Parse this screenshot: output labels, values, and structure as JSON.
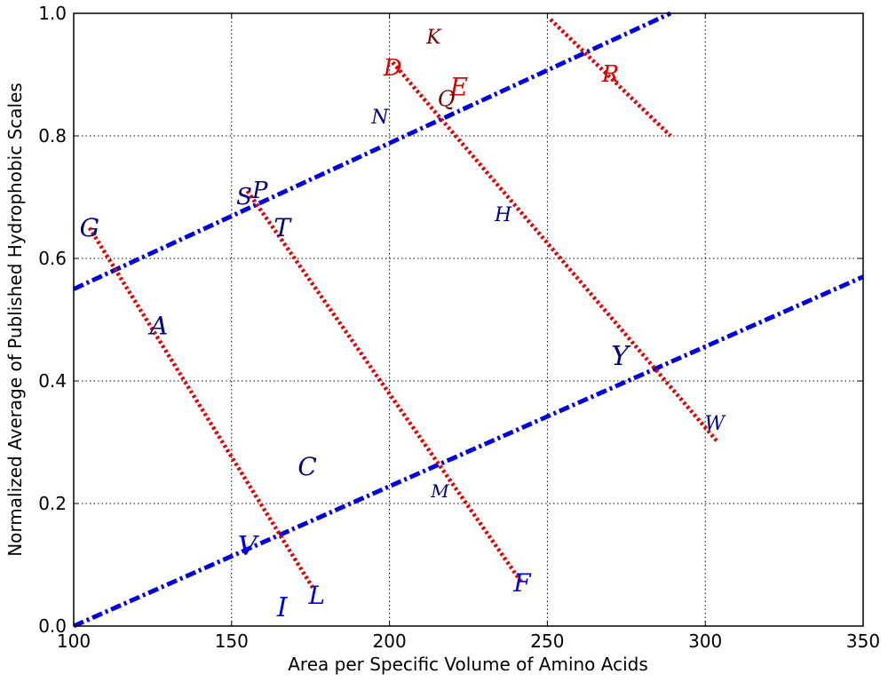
{
  "chart_data": {
    "type": "scatter",
    "title": "",
    "xlabel": "Area per Specific Volume of Amino Acids",
    "ylabel": "Normalized Average of Published Hydrophobic Scales",
    "xlim": [
      100,
      350
    ],
    "ylim": [
      0.0,
      1.0
    ],
    "xticks": [
      "100",
      "150",
      "200",
      "250",
      "300",
      "350"
    ],
    "yticks": [
      "0.0",
      "0.2",
      "0.4",
      "0.6",
      "0.8",
      "1.0"
    ],
    "grid": true,
    "legend": "none",
    "colors": {
      "red": "#dd0000",
      "blue": "#0000dd",
      "dark_red": "#7a0000",
      "dark_blue": "#000080"
    },
    "points": [
      {
        "label": "K",
        "x": 214,
        "y": 0.96,
        "color": "dark_red",
        "size": 22
      },
      {
        "label": "D",
        "x": 201,
        "y": 0.91,
        "color": "red",
        "size": 26
      },
      {
        "label": "E",
        "x": 222,
        "y": 0.88,
        "color": "red",
        "size": 28
      },
      {
        "label": "Q",
        "x": 218,
        "y": 0.86,
        "color": "dark_red",
        "size": 24
      },
      {
        "label": "R",
        "x": 270,
        "y": 0.9,
        "color": "red",
        "size": 26
      },
      {
        "label": "N",
        "x": 197,
        "y": 0.83,
        "color": "dark_blue",
        "size": 22
      },
      {
        "label": "S",
        "x": 154,
        "y": 0.7,
        "color": "dark_blue",
        "size": 26
      },
      {
        "label": "P",
        "x": 159,
        "y": 0.71,
        "color": "dark_blue",
        "size": 26
      },
      {
        "label": "T",
        "x": 166,
        "y": 0.65,
        "color": "dark_blue",
        "size": 28
      },
      {
        "label": "H",
        "x": 236,
        "y": 0.67,
        "color": "dark_blue",
        "size": 22
      },
      {
        "label": "G",
        "x": 105,
        "y": 0.65,
        "color": "dark_blue",
        "size": 28
      },
      {
        "label": "A",
        "x": 127,
        "y": 0.49,
        "color": "dark_blue",
        "size": 28
      },
      {
        "label": "Y",
        "x": 273,
        "y": 0.44,
        "color": "dark_blue",
        "size": 30
      },
      {
        "label": "W",
        "x": 303,
        "y": 0.33,
        "color": "dark_blue",
        "size": 22
      },
      {
        "label": "C",
        "x": 174,
        "y": 0.26,
        "color": "dark_blue",
        "size": 28
      },
      {
        "label": "M",
        "x": 216,
        "y": 0.22,
        "color": "dark_blue",
        "size": 20
      },
      {
        "label": "V",
        "x": 155,
        "y": 0.13,
        "color": "blue",
        "size": 30
      },
      {
        "label": "F",
        "x": 242,
        "y": 0.07,
        "color": "blue",
        "size": 28
      },
      {
        "label": "L",
        "x": 177,
        "y": 0.05,
        "color": "blue",
        "size": 28
      },
      {
        "label": "I",
        "x": 166,
        "y": 0.03,
        "color": "blue",
        "size": 30
      }
    ],
    "lines": [
      {
        "name": "blue-line-upper",
        "color": "blue",
        "style": "dash-dot",
        "x": [
          100,
          289
        ],
        "y": [
          0.55,
          1.0
        ]
      },
      {
        "name": "blue-line-lower",
        "color": "blue",
        "style": "dash-dot",
        "x": [
          100,
          350
        ],
        "y": [
          0.0,
          0.57
        ]
      },
      {
        "name": "red-line-g-l",
        "color": "red",
        "style": "dotted",
        "x": [
          105,
          176
        ],
        "y": [
          0.65,
          0.06
        ]
      },
      {
        "name": "red-line-s-f",
        "color": "red",
        "style": "dotted",
        "x": [
          155,
          242
        ],
        "y": [
          0.71,
          0.07
        ]
      },
      {
        "name": "red-line-d-w",
        "color": "red",
        "style": "dotted",
        "x": [
          201,
          304
        ],
        "y": [
          0.92,
          0.3
        ]
      },
      {
        "name": "red-line-r",
        "color": "red",
        "style": "dotted",
        "x": [
          251,
          289
        ],
        "y": [
          0.99,
          0.8
        ]
      }
    ]
  }
}
